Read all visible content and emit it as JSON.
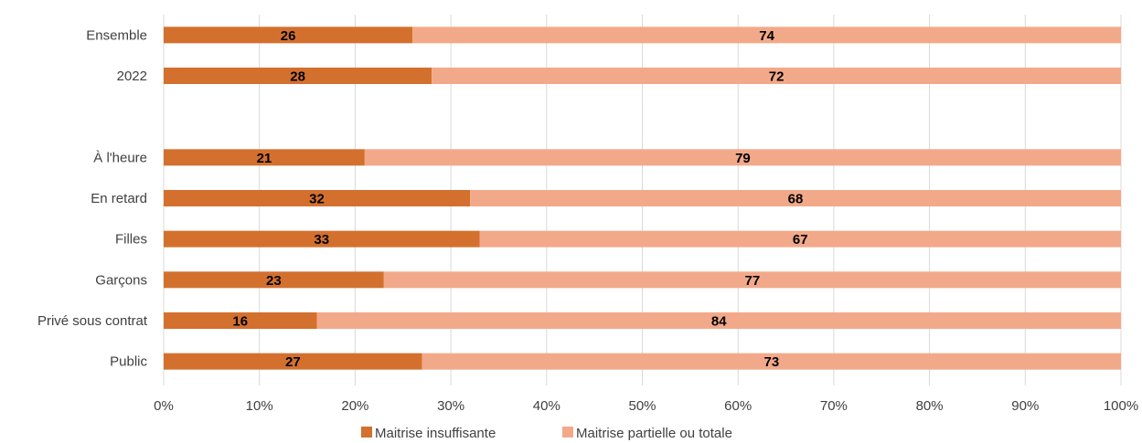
{
  "chart_data": {
    "type": "bar",
    "orientation": "horizontal",
    "stacked": true,
    "categories": [
      "Ensemble",
      "2022",
      "",
      "À l'heure",
      "En retard",
      "Filles",
      "Garçons",
      "Privé sous contrat",
      "Public"
    ],
    "series": [
      {
        "name": "Maitrise insuffisante",
        "color": "#D4702E",
        "values": [
          26,
          28,
          null,
          21,
          32,
          33,
          23,
          16,
          27
        ]
      },
      {
        "name": "Maitrise partielle ou totale",
        "color": "#F2A98A",
        "values": [
          74,
          72,
          null,
          79,
          68,
          67,
          77,
          84,
          73
        ]
      }
    ],
    "xlim": [
      0,
      100
    ],
    "xticks": [
      "0%",
      "10%",
      "20%",
      "30%",
      "40%",
      "50%",
      "60%",
      "70%",
      "80%",
      "90%",
      "100%"
    ],
    "grid": true,
    "legend_position": "bottom"
  }
}
